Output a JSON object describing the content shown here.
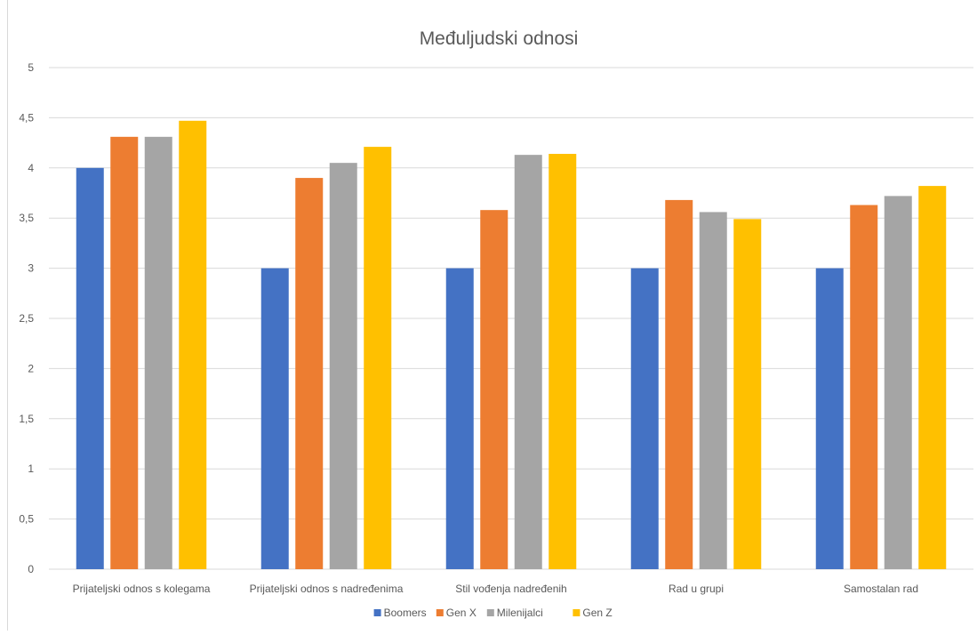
{
  "chart_data": {
    "type": "bar",
    "title": "Međuljudski odnosi",
    "xlabel": "",
    "ylabel": "",
    "ylim": [
      0,
      5
    ],
    "yticks": [
      0,
      0.5,
      1,
      1.5,
      2,
      2.5,
      3,
      3.5,
      4,
      4.5,
      5
    ],
    "ytick_labels": [
      "0",
      "0,5",
      "1",
      "1,5",
      "2",
      "2,5",
      "3",
      "3,5",
      "4",
      "4,5",
      "5"
    ],
    "grid": true,
    "legend_position": "bottom",
    "categories": [
      "Prijateljski odnos s kolegama",
      "Prijateljski odnos s nadređenima",
      "Stil vođenja nadređenih",
      "Rad u grupi",
      "Samostalan rad"
    ],
    "series": [
      {
        "name": "Boomers",
        "color": "#4472C4",
        "values": [
          4.0,
          3.0,
          3.0,
          3.0,
          3.0
        ]
      },
      {
        "name": "Gen X",
        "color": "#ED7D31",
        "values": [
          4.31,
          3.9,
          3.58,
          3.68,
          3.63
        ]
      },
      {
        "name": "Milenijalci",
        "color": "#A5A5A5",
        "values": [
          4.31,
          4.05,
          4.13,
          3.56,
          3.72
        ]
      },
      {
        "name": "Gen Z",
        "color": "#FFC000",
        "values": [
          4.47,
          4.21,
          4.14,
          3.49,
          3.82
        ]
      }
    ]
  }
}
